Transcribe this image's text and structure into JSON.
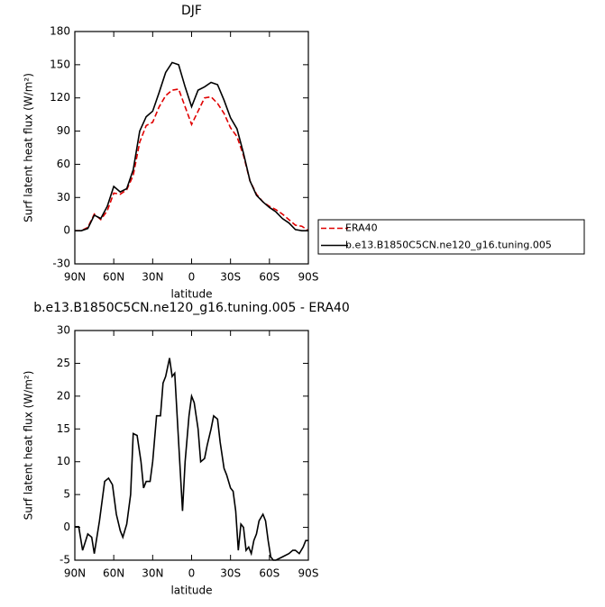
{
  "chart_data": [
    {
      "type": "line",
      "title": "DJF",
      "xlabel": "latitude",
      "ylabel": "Surf latent heat flux (W/m²)",
      "x": [
        90,
        85,
        80,
        75,
        70,
        65,
        60,
        55,
        50,
        45,
        40,
        35,
        30,
        25,
        20,
        15,
        10,
        5,
        0,
        -5,
        -10,
        -15,
        -20,
        -25,
        -30,
        -35,
        -40,
        -45,
        -50,
        -55,
        -60,
        -65,
        -70,
        -75,
        -80,
        -85,
        -90
      ],
      "xlim": [
        90,
        -90
      ],
      "xticks": [
        {
          "value": 90,
          "label": "90N"
        },
        {
          "value": 60,
          "label": "60N"
        },
        {
          "value": 30,
          "label": "30N"
        },
        0,
        {
          "value": -30,
          "label": "30S"
        },
        {
          "value": -60,
          "label": "60S"
        },
        {
          "value": -90,
          "label": "90S"
        }
      ],
      "ylim": [
        -30,
        180
      ],
      "yticks": [
        -30,
        0,
        30,
        60,
        90,
        120,
        150,
        180
      ],
      "legend": "right",
      "series": [
        {
          "name": "ERA40",
          "color": "#e00000",
          "dash": true,
          "values": [
            0,
            0,
            3,
            15,
            10,
            18,
            34,
            33,
            37,
            50,
            80,
            95,
            98,
            112,
            122,
            127,
            128,
            112,
            96,
            108,
            120,
            121,
            115,
            106,
            93,
            85,
            68,
            45,
            33,
            26,
            22,
            19,
            15,
            10,
            5,
            4,
            0
          ]
        },
        {
          "name": "b.e13.B1850C5CN.ne120_g16.tuning.005",
          "color": "#000000",
          "dash": false,
          "values": [
            0,
            0,
            2,
            14,
            11,
            22,
            40,
            35,
            38,
            55,
            90,
            103,
            108,
            125,
            143,
            152,
            150,
            130,
            112,
            127,
            130,
            134,
            132,
            118,
            102,
            92,
            70,
            45,
            32,
            26,
            21,
            17,
            11,
            7,
            1,
            0,
            0
          ]
        }
      ]
    },
    {
      "type": "line",
      "title": "b.e13.B1850C5CN.ne120_g16.tuning.005 - ERA40",
      "xlabel": "latitude",
      "ylabel": "Surf latent heat flux (W/m²)",
      "x": [
        90,
        87,
        84,
        80,
        77,
        75,
        71,
        67,
        64,
        61,
        58,
        55,
        53,
        50,
        47,
        45,
        42,
        39,
        37,
        35,
        32,
        30,
        27,
        24,
        22,
        20,
        17,
        15,
        13,
        10,
        7,
        5,
        2,
        0,
        -2,
        -5,
        -7,
        -10,
        -12,
        -15,
        -17,
        -20,
        -22,
        -25,
        -27,
        -30,
        -32,
        -34,
        -36,
        -38,
        -40,
        -42,
        -44,
        -46,
        -48,
        -50,
        -52,
        -55,
        -57,
        -59,
        -61,
        -63,
        -65,
        -70,
        -75,
        -78,
        -80,
        -83,
        -86,
        -88,
        -90
      ],
      "xlim": [
        90,
        -90
      ],
      "xticks": [
        {
          "value": 90,
          "label": "90N"
        },
        {
          "value": 60,
          "label": "60N"
        },
        {
          "value": 30,
          "label": "30N"
        },
        0,
        {
          "value": -30,
          "label": "30S"
        },
        {
          "value": -60,
          "label": "60S"
        },
        {
          "value": -90,
          "label": "90S"
        }
      ],
      "ylim": [
        -5,
        30
      ],
      "yticks": [
        -5,
        0,
        5,
        10,
        15,
        20,
        25,
        30
      ],
      "series": [
        {
          "color": "#000000",
          "dash": false,
          "values": [
            0.1,
            0.1,
            -3.5,
            -1,
            -1.5,
            -4,
            1,
            7,
            7.5,
            6.5,
            2,
            -0.5,
            -1.5,
            0.5,
            5,
            14.3,
            14,
            10,
            6,
            7,
            7,
            10,
            17,
            17,
            22,
            23,
            25.8,
            23,
            23.5,
            13,
            2.5,
            10,
            17,
            20,
            19,
            15,
            10,
            10.5,
            12.5,
            15,
            17,
            16.5,
            13,
            9,
            8,
            6,
            5.5,
            2.5,
            -3.5,
            0.5,
            0,
            -3.5,
            -3,
            -4,
            -2,
            -1,
            1,
            2,
            1,
            -2,
            -4.5,
            -5,
            -5,
            -4.5,
            -4,
            -3.5,
            -3.5,
            -4,
            -3,
            -2,
            -2
          ]
        }
      ]
    }
  ]
}
